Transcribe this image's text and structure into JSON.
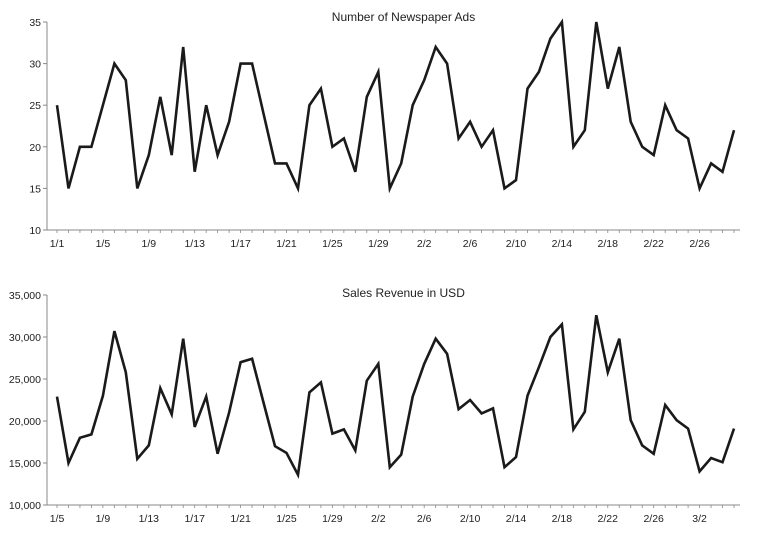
{
  "chart_data": [
    {
      "type": "line",
      "title": "Number of Newspaper Ads",
      "xlabel": "",
      "ylabel": "",
      "ylim": [
        10,
        35
      ],
      "y_ticks": [
        "10",
        "15",
        "20",
        "25",
        "30",
        "35"
      ],
      "x_tick_labels": [
        "1/1",
        "1/5",
        "1/9",
        "1/13",
        "1/17",
        "1/21",
        "1/25",
        "1/29",
        "2/2",
        "2/6",
        "2/10",
        "2/14",
        "2/18",
        "2/22",
        "2/26"
      ],
      "x_tick_every": 4,
      "grid": false,
      "line_color": "#1a1a1a",
      "values": [
        25,
        15,
        20,
        20,
        25,
        30,
        28,
        15,
        19,
        26,
        19,
        32,
        17,
        25,
        19,
        23,
        30,
        30,
        24,
        18,
        18,
        15,
        25,
        27,
        20,
        21,
        17,
        26,
        29,
        15,
        18,
        25,
        28,
        32,
        30,
        21,
        23,
        20,
        22,
        15,
        16,
        27,
        29,
        33,
        35,
        20,
        22,
        35,
        27,
        32,
        23,
        20,
        19,
        25,
        22,
        21,
        15,
        18,
        17,
        22
      ]
    },
    {
      "type": "line",
      "title": "Sales Revenue in USD",
      "xlabel": "",
      "ylabel": "",
      "ylim": [
        10000,
        35000
      ],
      "y_ticks": [
        "10,000",
        "15,000",
        "20,000",
        "25,000",
        "30,000",
        "35,000"
      ],
      "x_tick_labels": [
        "1/5",
        "1/9",
        "1/13",
        "1/17",
        "1/21",
        "1/25",
        "1/29",
        "2/2",
        "2/6",
        "2/10",
        "2/14",
        "2/18",
        "2/22",
        "2/26",
        "3/2"
      ],
      "x_tick_every": 4,
      "grid": false,
      "line_color": "#1a1a1a",
      "values": [
        22900,
        15000,
        18000,
        18400,
        23000,
        30700,
        25800,
        15500,
        17100,
        23900,
        20800,
        29800,
        19300,
        22900,
        16100,
        21000,
        27000,
        27400,
        22200,
        17000,
        16200,
        13600,
        23400,
        24600,
        18500,
        19000,
        16500,
        24800,
        26800,
        14500,
        16000,
        22900,
        26800,
        29800,
        28000,
        21400,
        22500,
        20900,
        21500,
        14500,
        15700,
        23000,
        26400,
        30000,
        31500,
        19000,
        21100,
        32600,
        25800,
        29800,
        20100,
        17100,
        16100,
        21900,
        20100,
        19100,
        14000,
        15600,
        15100,
        19100
      ]
    }
  ]
}
